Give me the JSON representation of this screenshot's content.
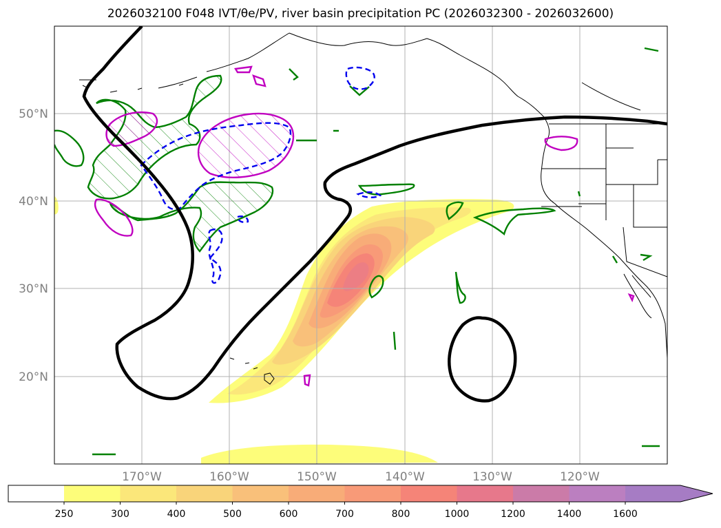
{
  "figure": {
    "title": "2026032100 F048 IVT/θe/PV, river basin precipitation PC (2026032300 - 2026032600)"
  },
  "chart_data": {
    "type": "heatmap",
    "title": "2026032100 F048 IVT/θe/PV, river basin precipitation PC (2026032300 - 2026032600)",
    "projection": "lat-lon",
    "xlim": [
      -180,
      -110
    ],
    "ylim": [
      10,
      60
    ],
    "lon_ticks": [
      -170,
      -160,
      -150,
      -140,
      -130,
      -120
    ],
    "lon_tick_labels": [
      "170°W",
      "160°W",
      "150°W",
      "140°W",
      "130°W",
      "120°W"
    ],
    "lat_ticks": [
      20,
      30,
      40,
      50
    ],
    "lat_tick_labels": [
      "20°N",
      "30°N",
      "40°N",
      "50°N"
    ],
    "grid": true,
    "ivt_levels": [
      250,
      300,
      400,
      500,
      600,
      700,
      800,
      1000,
      1200,
      1400,
      1600
    ],
    "ivt_colors": [
      "#fdfd7a",
      "#fbe77a",
      "#f9d47a",
      "#f9c07a",
      "#f8ac78",
      "#f89a78",
      "#f58478",
      "#e7788b",
      "#cb7ba8",
      "#bb7fc0",
      "#a67cc4"
    ],
    "ivt_core": {
      "lon": -145.5,
      "lat": 32,
      "max_level_approx": 1000
    },
    "colorbar": {
      "tick_labels": [
        "250",
        "300",
        "400",
        "500",
        "600",
        "700",
        "800",
        "1000",
        "1200",
        "1400",
        "1600"
      ],
      "extend": "max"
    },
    "contour_colors": {
      "black": "#000000",
      "green": "#008000",
      "magenta": "#c000c0",
      "blue": "#0000ee"
    }
  }
}
